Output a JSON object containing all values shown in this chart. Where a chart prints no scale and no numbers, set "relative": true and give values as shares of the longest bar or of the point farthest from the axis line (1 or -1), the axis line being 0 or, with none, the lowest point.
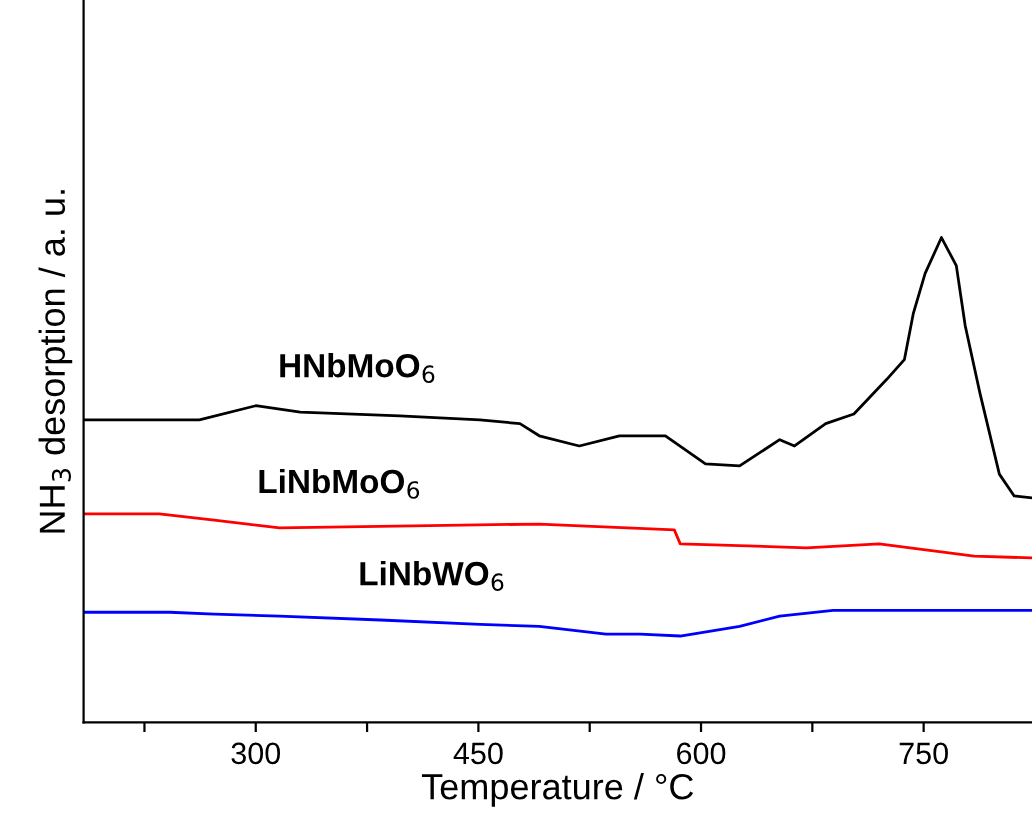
{
  "chart_data": {
    "type": "line",
    "relative": true,
    "xlabel": "Temperature / °C",
    "ylabel": "NH$_{3}$ desorption / a. u.",
    "xlim": [
      184,
      823
    ],
    "xticks": [
      {
        "value": 225,
        "label": null
      },
      300,
      {
        "value": 375,
        "label": null
      },
      450,
      {
        "value": 525,
        "label": null
      },
      600,
      {
        "value": 675,
        "label": null
      },
      750
    ],
    "tick_labels": "x",
    "grid": false,
    "legend": false,
    "marker": "none",
    "line_style": "solid",
    "series": [
      {
        "name": "HNbMoO$_{6}$",
        "color": "#000000",
        "x": [
          184,
          262,
          300,
          330,
          397,
          451,
          478,
          491,
          518,
          545,
          576,
          603,
          626,
          653,
          663,
          684,
          703,
          725,
          737,
          743,
          751,
          762,
          772,
          778,
          788,
          801,
          811,
          823
        ],
        "values": [
          0.624,
          0.624,
          0.653,
          0.64,
          0.632,
          0.624,
          0.616,
          0.591,
          0.57,
          0.591,
          0.591,
          0.533,
          0.529,
          0.583,
          0.57,
          0.616,
          0.636,
          0.707,
          0.748,
          0.843,
          0.926,
          1,
          0.942,
          0.818,
          0.678,
          0.512,
          0.467,
          0.463
        ]
      },
      {
        "name": "LiNbMoO$_{6}$",
        "color": "#ff0000",
        "x": [
          184,
          235,
          272,
          316,
          406,
          491,
          582,
          586,
          671,
          720,
          784,
          823
        ],
        "values": [
          0.43,
          0.43,
          0.417,
          0.401,
          0.405,
          0.409,
          0.397,
          0.368,
          0.36,
          0.368,
          0.343,
          0.339
        ]
      },
      {
        "name": "LiNbWO$_{6}$",
        "color": "#0000ff",
        "x": [
          184,
          242,
          272,
          316,
          384,
          451,
          491,
          536,
          559,
          586,
          626,
          653,
          689,
          823
        ],
        "values": [
          0.227,
          0.227,
          0.223,
          0.219,
          0.211,
          0.202,
          0.198,
          0.182,
          0.182,
          0.178,
          0.198,
          0.219,
          0.231,
          0.231
        ]
      }
    ]
  }
}
